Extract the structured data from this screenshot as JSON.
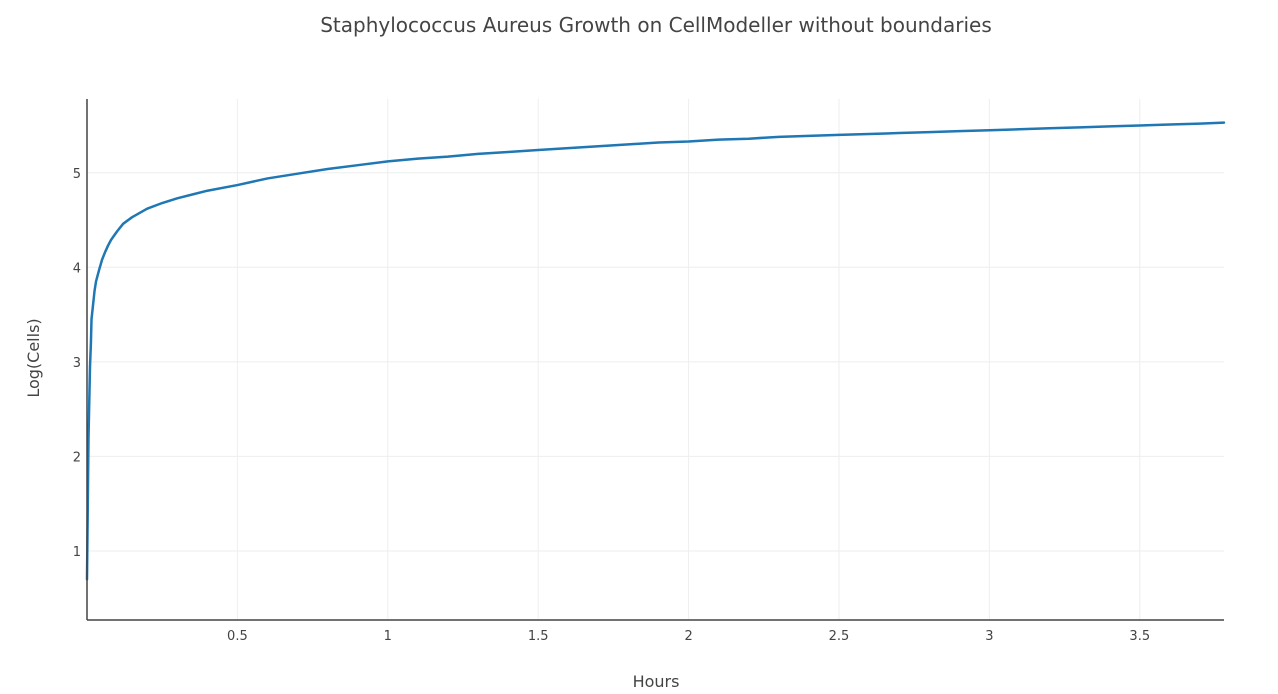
{
  "chart_data": {
    "type": "line",
    "title": "Staphylococcus Aureus Growth on CellModeller without boundaries",
    "xlabel": "Hours",
    "ylabel": "Log(Cells)",
    "xlim": [
      0,
      3.78
    ],
    "ylim": [
      0.27,
      5.78
    ],
    "grid": true,
    "legend": "none",
    "x_ticks": [
      {
        "value": 0.5,
        "label": "0.5"
      },
      {
        "value": 1,
        "label": "1"
      },
      {
        "value": 1.5,
        "label": "1.5"
      },
      {
        "value": 2,
        "label": "2"
      },
      {
        "value": 2.5,
        "label": "2.5"
      },
      {
        "value": 3,
        "label": "3"
      },
      {
        "value": 3.5,
        "label": "3.5"
      }
    ],
    "y_ticks": [
      {
        "value": 1,
        "label": "1"
      },
      {
        "value": 2,
        "label": "2"
      },
      {
        "value": 3,
        "label": "3"
      },
      {
        "value": 4,
        "label": "4"
      },
      {
        "value": 5,
        "label": "5"
      }
    ],
    "series": [
      {
        "color": "#1f77b4",
        "x": [
          0.0,
          0.003,
          0.005,
          0.008,
          0.01,
          0.013,
          0.015,
          0.02,
          0.025,
          0.03,
          0.04,
          0.05,
          0.06,
          0.07,
          0.08,
          0.1,
          0.12,
          0.15,
          0.2,
          0.25,
          0.3,
          0.35,
          0.4,
          0.5,
          0.6,
          0.7,
          0.8,
          0.9,
          1.0,
          1.1,
          1.2,
          1.3,
          1.4,
          1.5,
          1.6,
          1.7,
          1.8,
          1.9,
          2.0,
          2.1,
          2.2,
          2.3,
          2.4,
          2.5,
          2.6,
          2.7,
          2.8,
          2.9,
          3.0,
          3.1,
          3.2,
          3.3,
          3.4,
          3.5,
          3.6,
          3.7,
          3.78
        ],
        "y": [
          0.7,
          1.6,
          2.2,
          2.65,
          2.95,
          3.2,
          3.45,
          3.6,
          3.75,
          3.85,
          3.97,
          4.08,
          4.16,
          4.23,
          4.29,
          4.38,
          4.46,
          4.53,
          4.62,
          4.68,
          4.73,
          4.77,
          4.81,
          4.87,
          4.94,
          4.99,
          5.04,
          5.08,
          5.12,
          5.15,
          5.17,
          5.2,
          5.22,
          5.24,
          5.26,
          5.28,
          5.3,
          5.32,
          5.33,
          5.35,
          5.36,
          5.38,
          5.39,
          5.4,
          5.41,
          5.42,
          5.43,
          5.44,
          5.45,
          5.46,
          5.47,
          5.48,
          5.49,
          5.5,
          5.51,
          5.52,
          5.53
        ]
      }
    ]
  }
}
